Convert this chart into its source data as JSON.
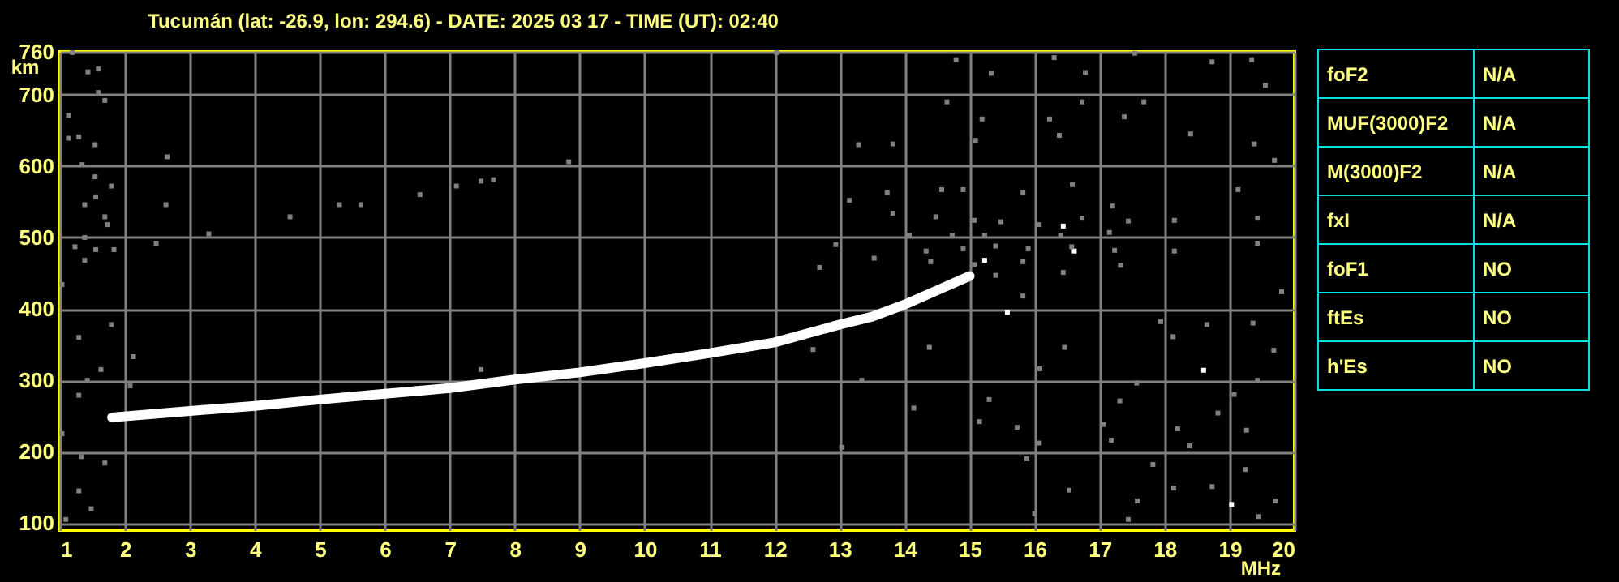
{
  "chart_data": [
    {
      "type": "scatter",
      "title": "Tucumán (lat: -26.9, lon: 294.6) - DATE: 2025 03 17 - TIME (UT): 02:40",
      "xlabel": "MHz",
      "ylabel": "km",
      "xlim": [
        1,
        20
      ],
      "ylim": [
        90,
        760
      ],
      "xticks": [
        1,
        2,
        3,
        4,
        5,
        6,
        7,
        8,
        9,
        10,
        11,
        12,
        13,
        14,
        15,
        16,
        17,
        18,
        19,
        20
      ],
      "yticks": [
        100,
        200,
        300,
        400,
        500,
        600,
        700,
        760
      ],
      "grid": true,
      "marker": "square",
      "series": [
        {
          "type": "line",
          "marker": "none",
          "color": "#ffffff",
          "x": [
            1.8,
            3,
            4,
            5,
            6,
            7,
            8,
            9,
            10,
            11,
            12,
            13,
            13.5,
            14,
            14.5,
            15
          ],
          "values": [
            248,
            257,
            264,
            273,
            281,
            289,
            301,
            311,
            324,
            338,
            353,
            378,
            389,
            406,
            426,
            446
          ]
        },
        {
          "color": "#ffffff",
          "x": [
            16.44,
            16.61,
            18.6,
            19.03,
            15.23,
            15.58
          ],
          "values": [
            516,
            481,
            314,
            126,
            468,
            395
          ]
        },
        {
          "color": "#808080",
          "x": [
            1.19,
            1.43,
            1.59,
            1.59,
            1.69,
            1.13,
            1.29,
            1.13,
            1.54,
            1.34,
            1.54,
            1.79,
            1.55,
            1.38,
            2.63,
            5.3,
            5.63,
            4.54,
            1.69,
            1.73,
            1.38,
            3.29,
            2.48,
            1.23,
            1.55,
            1.83,
            1.38,
            1.03,
            1.79,
            1.29,
            2.13,
            1.63,
            7.48,
            1.42,
            2.08,
            1.29,
            1.03,
            1.33,
            1.29,
            1.48,
            1.09,
            2.65,
            8.83,
            7.48,
            7.67,
            7.1,
            6.54,
            1.69,
            12.03,
            14.79,
            15.33,
            16.3,
            16.78,
            17.54,
            19.34,
            18.73,
            19.55,
            17.68,
            16.73,
            16.23,
            17.38,
            15.19,
            14.65,
            13.82,
            13.29,
            15.09,
            16.38,
            18.4,
            19.38,
            19.69,
            13.15,
            13.73,
            14.57,
            14.9,
            15.82,
            16.58,
            17.2,
            19.13,
            13.82,
            14.48,
            15.07,
            15.48,
            16.07,
            16.73,
            17.44,
            18.15,
            19.43,
            14.07,
            14.73,
            15.23,
            16.4,
            17.15,
            14.33,
            14.9,
            15.4,
            15.9,
            16.57,
            17.23,
            18.15,
            19.43,
            13.53,
            14.4,
            15.07,
            15.82,
            16.44,
            17.32,
            12.69,
            12.94,
            15.4,
            15.82,
            17.94,
            18.65,
            19.36,
            19.8,
            18.13,
            16.46,
            19.68,
            16.08,
            12.59,
            14.38,
            13.34,
            17.57,
            19.43,
            15.3,
            14.14,
            18.82,
            19.07,
            15.15,
            15.73,
            19.26,
            17.06,
            17.31,
            18.2,
            13.03,
            16.07,
            17.18,
            18.39,
            15.88,
            17.82,
            19.24,
            16.53,
            18.14,
            18.73,
            19.7,
            17.58,
            19.45,
            17.44,
            16.0
          ],
          "values": [
            759,
            732,
            736,
            703,
            692,
            671,
            641,
            639,
            630,
            602,
            585,
            572,
            557,
            546,
            546,
            546,
            546,
            529,
            529,
            518,
            500,
            505,
            492,
            487,
            483,
            483,
            468,
            434,
            378,
            360,
            333,
            315,
            315,
            300,
            292,
            279,
            225,
            193,
            145,
            120,
            105,
            613,
            606,
            579,
            581,
            572,
            560,
            184,
            759,
            749,
            730,
            752,
            731,
            758,
            749,
            746,
            713,
            690,
            690,
            666,
            669,
            666,
            690,
            631,
            630,
            636,
            643,
            645,
            631,
            608,
            552,
            563,
            567,
            567,
            563,
            574,
            544,
            567,
            534,
            529,
            524,
            522,
            518,
            527,
            523,
            524,
            527,
            503,
            503,
            503,
            503,
            507,
            481,
            484,
            488,
            484,
            487,
            482,
            481,
            492,
            471,
            466,
            462,
            466,
            451,
            461,
            458,
            490,
            447,
            418,
            382,
            378,
            380,
            424,
            361,
            346,
            342,
            316,
            343,
            346,
            300,
            296,
            300,
            273,
            261,
            254,
            280,
            242,
            234,
            230,
            238,
            271,
            232,
            206,
            212,
            216,
            208,
            190,
            182,
            175,
            146,
            149,
            151,
            131,
            131,
            109,
            105,
            113
          ]
        }
      ]
    },
    {
      "type": "other",
      "annotations": [
        "foF2",
        "N/A",
        "MUF(3000)F2",
        "N/A",
        "M(3000)F2",
        "N/A",
        "fxI",
        "N/A",
        "foF1",
        "NO",
        "ftEs",
        "NO",
        "h'Es",
        "NO"
      ]
    }
  ]
}
